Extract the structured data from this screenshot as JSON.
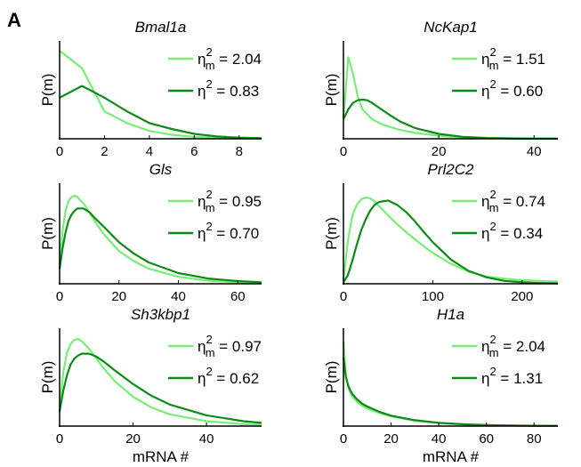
{
  "panel_label": "A",
  "colors": {
    "measured": "#77ee77",
    "model": "#0e8a16"
  },
  "chart_data": [
    {
      "type": "line",
      "title": "Bmal1a",
      "ylabel": "P(m)",
      "xlabel": "",
      "xlim": [
        0,
        9
      ],
      "ylim": [
        0,
        0.5
      ],
      "xticks": [
        0,
        2,
        4,
        6,
        8
      ],
      "legend": [
        {
          "symbol": "η",
          "subscript": "m",
          "superscript": "2",
          "value": "= 2.04"
        },
        {
          "symbol": "η",
          "subscript": "",
          "superscript": "2",
          "value": "= 0.83"
        }
      ],
      "series": [
        {
          "x": [
            0,
            1,
            2,
            3,
            4,
            5,
            6,
            7,
            8,
            9
          ],
          "values": [
            0.45,
            0.36,
            0.14,
            0.08,
            0.04,
            0.02,
            0.01,
            0.005,
            0.002,
            0.001
          ]
        },
        {
          "x": [
            0,
            1,
            2,
            3,
            4,
            5,
            6,
            7,
            8,
            9
          ],
          "values": [
            0.21,
            0.27,
            0.21,
            0.14,
            0.08,
            0.05,
            0.025,
            0.012,
            0.006,
            0.003
          ]
        }
      ]
    },
    {
      "type": "line",
      "title": "NcKap1",
      "ylabel": "P(m)",
      "xlabel": "",
      "xlim": [
        0,
        45
      ],
      "ylim": [
        0,
        0.3
      ],
      "xticks": [
        0,
        20,
        40
      ],
      "legend": [
        {
          "symbol": "η",
          "subscript": "m",
          "superscript": "2",
          "value": "= 1.51"
        },
        {
          "symbol": "η",
          "subscript": "",
          "superscript": "2",
          "value": "= 0.60"
        }
      ],
      "series": [
        {
          "x": [
            0,
            1,
            2,
            3,
            4,
            5,
            6,
            8,
            10,
            12,
            15,
            20,
            25,
            30,
            35,
            40,
            45
          ],
          "values": [
            0.06,
            0.25,
            0.2,
            0.13,
            0.09,
            0.075,
            0.06,
            0.045,
            0.035,
            0.027,
            0.018,
            0.009,
            0.004,
            0.002,
            0.001,
            0.0005,
            0.0002
          ]
        },
        {
          "x": [
            0,
            1,
            2,
            3,
            4,
            5,
            6,
            8,
            10,
            12,
            15,
            20,
            25,
            30,
            35,
            40,
            45
          ],
          "values": [
            0.06,
            0.09,
            0.11,
            0.118,
            0.12,
            0.118,
            0.11,
            0.09,
            0.07,
            0.052,
            0.033,
            0.015,
            0.006,
            0.0025,
            0.001,
            0.0004,
            0.0002
          ]
        }
      ]
    },
    {
      "type": "line",
      "title": "Gls",
      "ylabel": "P(m)",
      "xlabel": "",
      "xlim": [
        0,
        68
      ],
      "ylim": [
        0,
        0.08
      ],
      "xticks": [
        0,
        20,
        40,
        60
      ],
      "legend": [
        {
          "symbol": "η",
          "subscript": "m",
          "superscript": "2",
          "value": "= 0.95"
        },
        {
          "symbol": "η",
          "subscript": "",
          "superscript": "2",
          "value": "= 0.70"
        }
      ],
      "series": [
        {
          "x": [
            0,
            1,
            2,
            3,
            4,
            5,
            6,
            8,
            10,
            12,
            15,
            20,
            25,
            30,
            40,
            50,
            60,
            68
          ],
          "values": [
            0.012,
            0.042,
            0.058,
            0.066,
            0.069,
            0.07,
            0.069,
            0.064,
            0.057,
            0.049,
            0.039,
            0.026,
            0.018,
            0.012,
            0.0055,
            0.0025,
            0.0012,
            0.0006
          ]
        },
        {
          "x": [
            0,
            1,
            2,
            3,
            4,
            5,
            6,
            8,
            10,
            12,
            15,
            20,
            25,
            30,
            40,
            50,
            60,
            68
          ],
          "values": [
            0.012,
            0.028,
            0.041,
            0.05,
            0.055,
            0.058,
            0.06,
            0.06,
            0.057,
            0.052,
            0.045,
            0.033,
            0.024,
            0.017,
            0.0085,
            0.0042,
            0.0021,
            0.0012
          ]
        }
      ]
    },
    {
      "type": "line",
      "title": "Prl2C2",
      "ylabel": "P(m)",
      "xlabel": "",
      "xlim": [
        0,
        240
      ],
      "ylim": [
        0,
        0.014
      ],
      "xticks": [
        0,
        100,
        200
      ],
      "legend": [
        {
          "symbol": "η",
          "subscript": "m",
          "superscript": "2",
          "value": "= 0.74"
        },
        {
          "symbol": "η",
          "subscript": "",
          "superscript": "2",
          "value": "= 0.34"
        }
      ],
      "series": [
        {
          "x": [
            0,
            5,
            10,
            15,
            20,
            25,
            30,
            35,
            40,
            50,
            60,
            70,
            80,
            90,
            100,
            120,
            140,
            160,
            180,
            200,
            220,
            240
          ],
          "values": [
            0.0005,
            0.006,
            0.0095,
            0.011,
            0.0118,
            0.012,
            0.0119,
            0.0115,
            0.0108,
            0.0095,
            0.0083,
            0.0072,
            0.0062,
            0.0052,
            0.0043,
            0.0028,
            0.0017,
            0.001,
            0.0007,
            0.0005,
            0.0004,
            0.0003
          ]
        },
        {
          "x": [
            0,
            5,
            10,
            15,
            20,
            25,
            30,
            35,
            40,
            50,
            60,
            70,
            80,
            90,
            100,
            120,
            140,
            160,
            180,
            200,
            220,
            240
          ],
          "values": [
            0.0002,
            0.0012,
            0.0032,
            0.0055,
            0.0075,
            0.009,
            0.0102,
            0.011,
            0.0114,
            0.0116,
            0.011,
            0.01,
            0.0087,
            0.0072,
            0.0058,
            0.0034,
            0.0018,
            0.0009,
            0.0004,
            0.0002,
            0.0001,
            5e-05
          ]
        }
      ]
    },
    {
      "type": "line",
      "title": "Sh3kbp1",
      "ylabel": "P(m)",
      "xlabel": "mRNA #",
      "xlim": [
        0,
        55
      ],
      "ylim": [
        0,
        0.1
      ],
      "xticks": [
        0,
        20,
        40
      ],
      "legend": [
        {
          "symbol": "η",
          "subscript": "m",
          "superscript": "2",
          "value": "= 0.97"
        },
        {
          "symbol": "η",
          "subscript": "",
          "superscript": "2",
          "value": "= 0.62"
        }
      ],
      "series": [
        {
          "x": [
            0,
            1,
            2,
            3,
            4,
            5,
            6,
            8,
            10,
            12,
            15,
            20,
            25,
            30,
            40,
            50,
            55
          ],
          "values": [
            0.015,
            0.055,
            0.075,
            0.084,
            0.088,
            0.089,
            0.087,
            0.079,
            0.069,
            0.059,
            0.046,
            0.03,
            0.019,
            0.012,
            0.005,
            0.002,
            0.0013
          ]
        },
        {
          "x": [
            0,
            1,
            2,
            3,
            4,
            5,
            6,
            8,
            10,
            12,
            15,
            20,
            25,
            30,
            40,
            50,
            55
          ],
          "values": [
            0.015,
            0.036,
            0.052,
            0.063,
            0.069,
            0.072,
            0.074,
            0.074,
            0.071,
            0.066,
            0.057,
            0.043,
            0.031,
            0.022,
            0.011,
            0.005,
            0.0033
          ]
        }
      ]
    },
    {
      "type": "line",
      "title": "H1a",
      "ylabel": "P(m)",
      "xlabel": "mRNA #",
      "xlim": [
        0,
        90
      ],
      "ylim": [
        0,
        0.15
      ],
      "xticks": [
        0,
        20,
        40,
        60,
        80
      ],
      "legend": [
        {
          "symbol": "η",
          "subscript": "m",
          "superscript": "2",
          "value": "= 2.04"
        },
        {
          "symbol": "η",
          "subscript": "",
          "superscript": "2",
          "value": "= 1.31"
        }
      ],
      "series": [
        {
          "x": [
            0,
            1,
            2,
            3,
            4,
            6,
            8,
            10,
            15,
            20,
            30,
            40,
            50,
            60,
            70,
            80,
            90
          ],
          "values": [
            0.13,
            0.08,
            0.06,
            0.05,
            0.044,
            0.036,
            0.031,
            0.027,
            0.02,
            0.015,
            0.008,
            0.0045,
            0.0025,
            0.0014,
            0.0008,
            0.0005,
            0.0003
          ]
        },
        {
          "x": [
            0,
            1,
            2,
            3,
            4,
            6,
            8,
            10,
            15,
            20,
            30,
            40,
            50,
            60,
            70,
            80,
            90
          ],
          "values": [
            0.105,
            0.075,
            0.062,
            0.054,
            0.048,
            0.04,
            0.034,
            0.03,
            0.022,
            0.016,
            0.009,
            0.005,
            0.0029,
            0.0017,
            0.001,
            0.0006,
            0.0004
          ]
        }
      ]
    }
  ]
}
